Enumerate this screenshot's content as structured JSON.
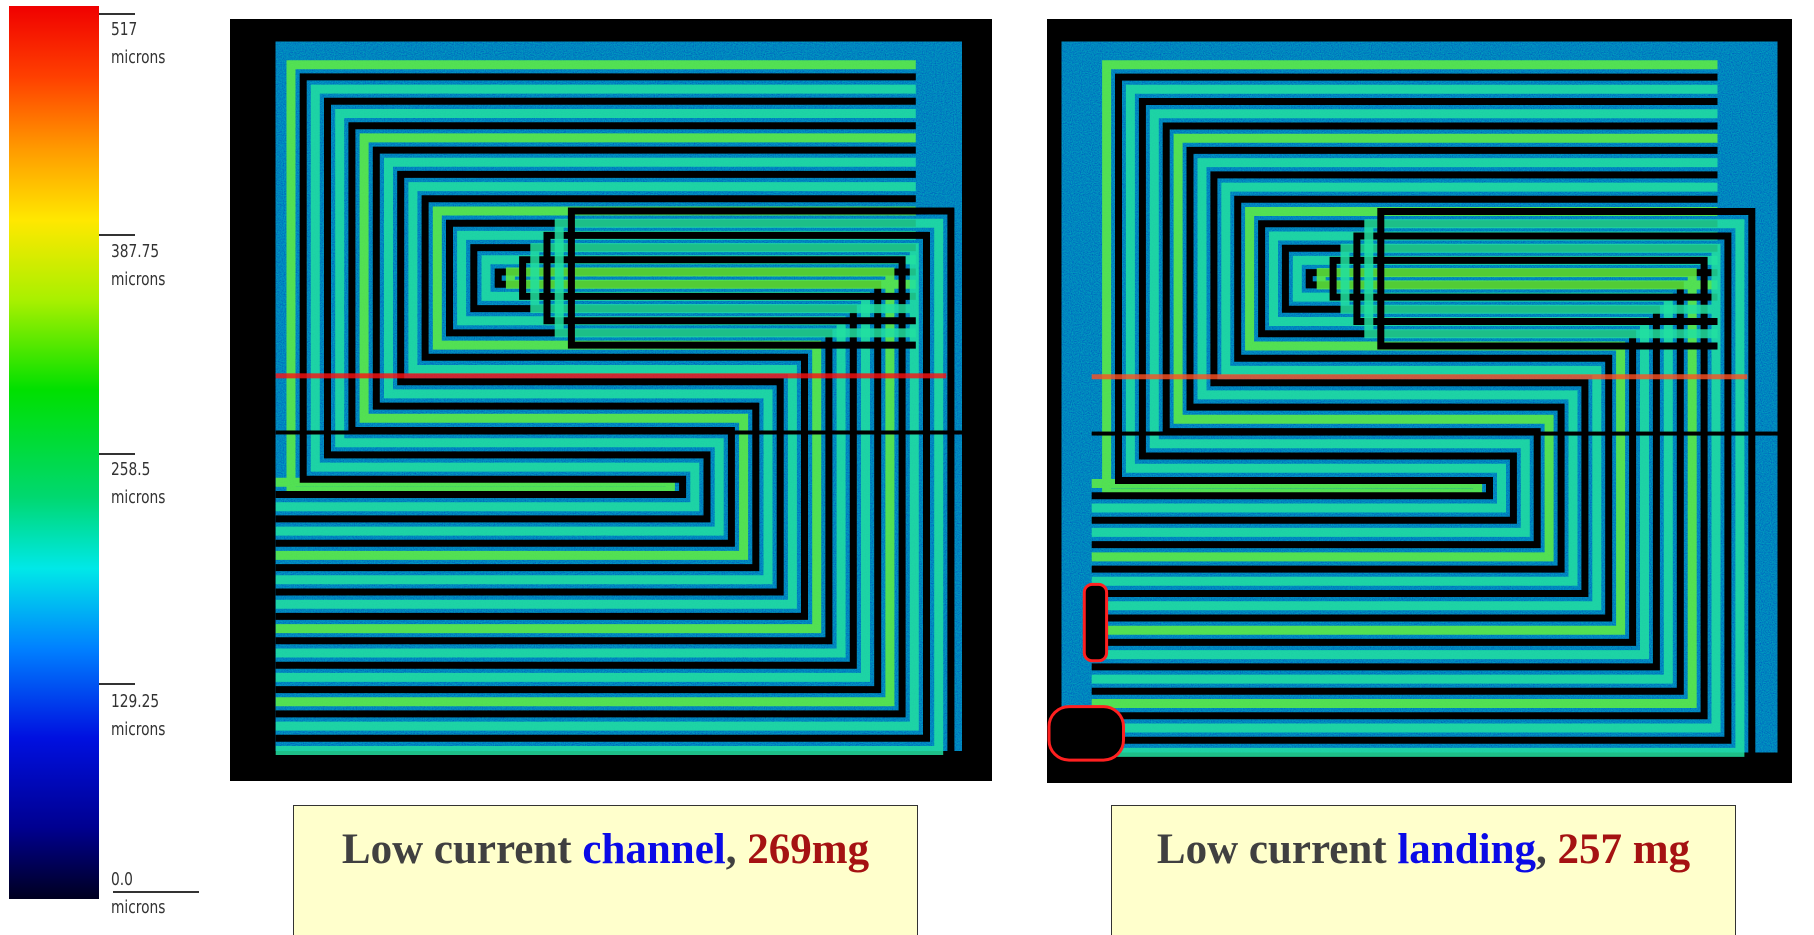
{
  "colorbar": {
    "labels": [
      "517 microns",
      "387.75 microns",
      "258.5 microns",
      "129.25 microns",
      "0.0 microns"
    ]
  },
  "panels": [
    {
      "lead": "Low current",
      "highlight": "channel",
      "punct": ",",
      "mass": "269mg"
    },
    {
      "lead": "Low current",
      "highlight": "landing",
      "punct": ",",
      "mass": "257 mg"
    }
  ]
}
